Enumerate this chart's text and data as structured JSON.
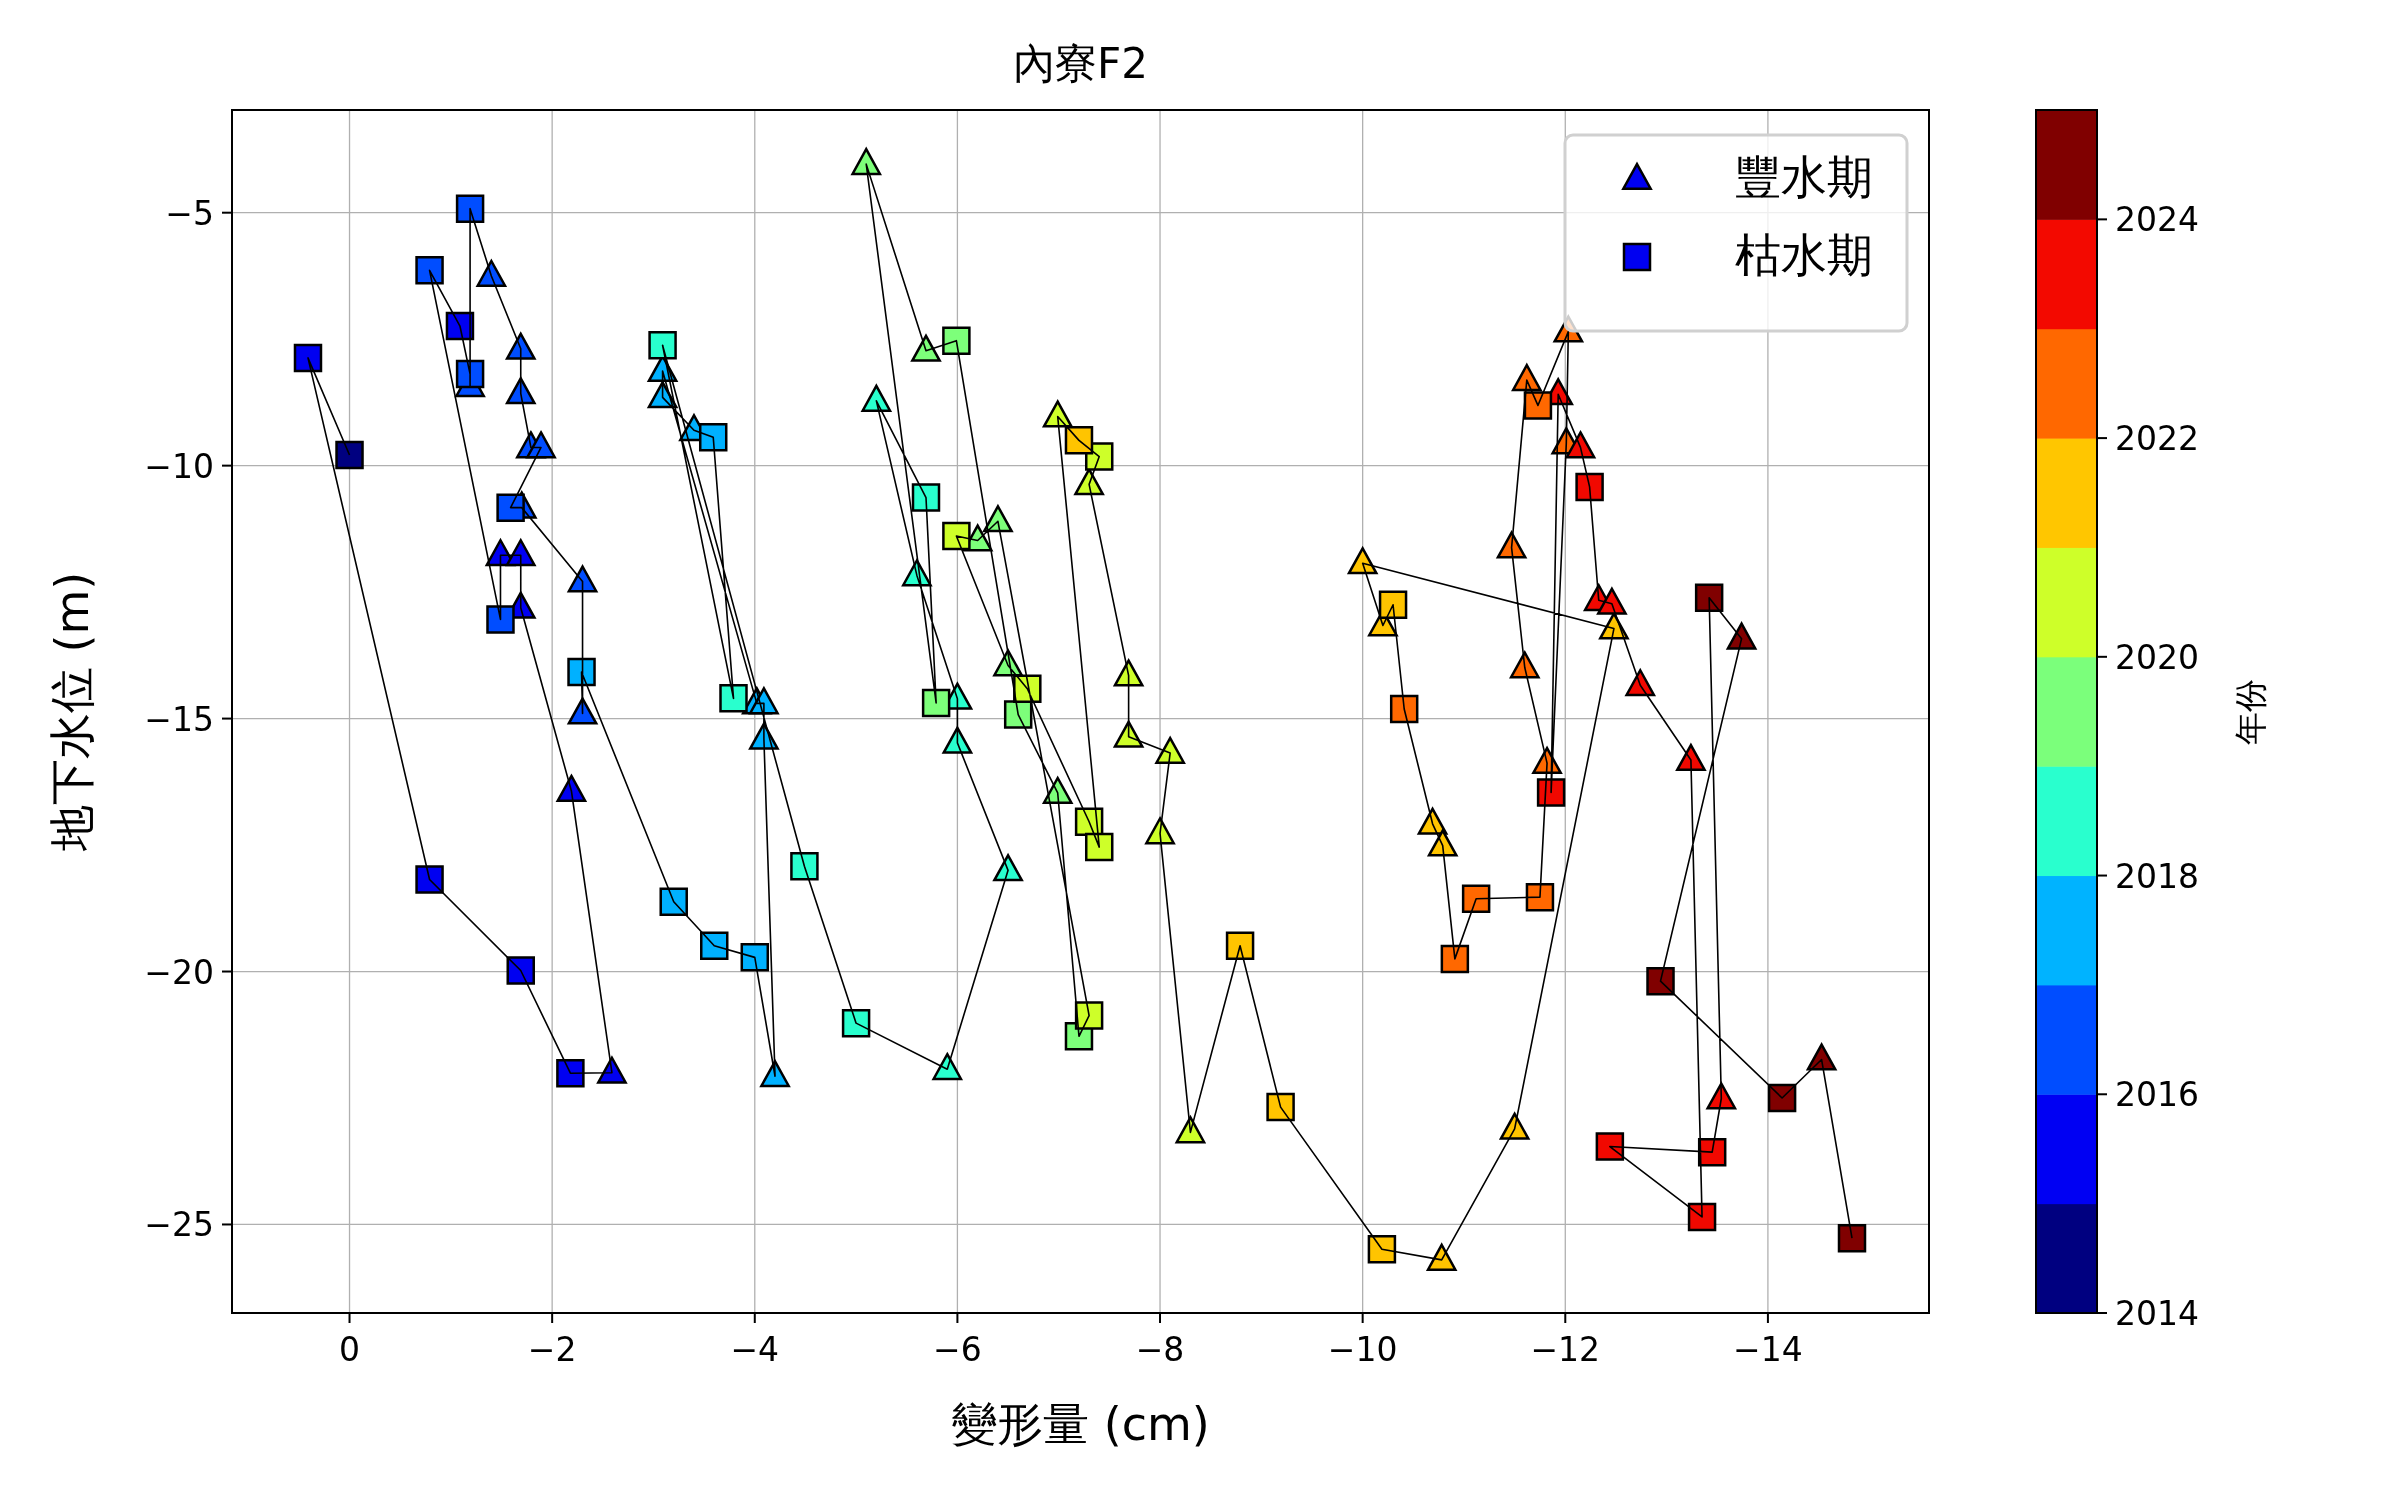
{
  "chart_data": {
    "type": "scatter",
    "title": "內寮F2",
    "xlabel": "變形量 (cm)",
    "ylabel": "地下水位 (m)",
    "clabel": "年份",
    "xlim": [
      1.16,
      -15.59
    ],
    "ylim": [
      -26.75,
      -2.97
    ],
    "xticks": [
      {
        "value": 0,
        "label": "0"
      },
      {
        "value": -2,
        "label": "−2"
      },
      {
        "value": -4,
        "label": "−4"
      },
      {
        "value": -6,
        "label": "−6"
      },
      {
        "value": -8,
        "label": "−8"
      },
      {
        "value": -10,
        "label": "−10"
      },
      {
        "value": -12,
        "label": "−12"
      },
      {
        "value": -14,
        "label": "−14"
      }
    ],
    "yticks": [
      {
        "value": -5,
        "label": "−5"
      },
      {
        "value": -10,
        "label": "−10"
      },
      {
        "value": -15,
        "label": "−15"
      },
      {
        "value": -20,
        "label": "−20"
      },
      {
        "value": -25,
        "label": "−25"
      }
    ],
    "clim": [
      2014,
      2025
    ],
    "cticks": [
      2014,
      2016,
      2018,
      2020,
      2022,
      2024
    ],
    "grid": true,
    "legend": "top right",
    "series": [
      {
        "name": "豐水期",
        "marker": "triangle",
        "colors": [
          "#0000f1",
          "#0000f1",
          "#0000f1",
          "#0000f1",
          "#0000f1",
          "#004dff",
          "#004dff",
          "#004dff",
          "#004dff",
          "#004dff",
          "#004dff",
          "#004dff",
          "#004dff",
          "#004dff",
          "#00b1ff",
          "#00b1ff",
          "#00b1ff",
          "#00b1ff",
          "#00b1ff",
          "#00b1ff",
          "#00b1ff",
          "#29ffce",
          "#29ffce",
          "#29ffce",
          "#29ffce",
          "#29ffce",
          "#29ffce",
          "#7dff7a",
          "#7dff7a",
          "#7dff7a",
          "#7dff7a",
          "#7dff7a",
          "#7dff7a",
          "#ceff29",
          "#ceff29",
          "#ceff29",
          "#ceff29",
          "#ceff29",
          "#ceff29",
          "#ceff29",
          "#ffc400",
          "#ffc400",
          "#ffc400",
          "#ffc400",
          "#ffc400",
          "#ffc400",
          "#ffc400",
          "#ff6800",
          "#ff6800",
          "#ff6800",
          "#ff6800",
          "#f10800",
          "#ff6800",
          "#ff6800",
          "#f10800",
          "#f10800",
          "#f10800",
          "#f10800",
          "#f10800",
          "#800000",
          "#800000",
          "#f10800"
        ],
        "x": [
          -2.59,
          -2.19,
          -1.69,
          -1.49,
          -1.69,
          -1.19,
          -1.4,
          -1.69,
          -1.69,
          -1.79,
          -1.89,
          -1.7,
          -2.3,
          -2.3,
          -4.2,
          -4.09,
          -4.02,
          -4.09,
          -3.09,
          -3.09,
          -3.4,
          -5.9,
          -6.5,
          -6.0,
          -6.0,
          -5.6,
          -5.2,
          -5.1,
          -5.69,
          -6.2,
          -6.4,
          -6.5,
          -6.99,
          -6.99,
          -7.3,
          -7.69,
          -7.69,
          -8.1,
          -8.0,
          -8.3,
          -10.78,
          -11.5,
          -12.48,
          -10.0,
          -10.2,
          -10.69,
          -10.79,
          -11.82,
          -11.6,
          -11.47,
          -11.62,
          -11.93,
          -12.03,
          -12.01,
          -12.15,
          -12.33,
          -12.46,
          -12.74,
          -13.24,
          -13.74,
          -14.53,
          -13.54
        ],
        "values": [
          -22.0,
          -16.43,
          -12.81,
          -11.77,
          -11.77,
          -8.43,
          -6.25,
          -7.69,
          -8.57,
          -9.64,
          -9.64,
          -10.83,
          -12.29,
          -14.9,
          -22.07,
          -15.4,
          -14.7,
          -14.7,
          -8.13,
          -8.65,
          -9.3,
          -21.93,
          -18.0,
          -15.48,
          -14.61,
          -12.17,
          -8.72,
          -4.04,
          -7.73,
          -11.48,
          -11.1,
          -13.95,
          -16.47,
          -9.03,
          -10.37,
          -14.15,
          -15.36,
          -15.68,
          -17.27,
          -23.18,
          -25.7,
          -23.11,
          -13.22,
          -11.93,
          -13.16,
          -17.08,
          -17.51,
          -15.88,
          -13.99,
          -11.62,
          -8.31,
          -8.59,
          -7.35,
          -9.56,
          -9.64,
          -12.66,
          -12.73,
          -14.34,
          -15.82,
          -13.42,
          -21.74,
          -22.51
        ],
        "cvalues": [
          2015,
          2015,
          2015,
          2015,
          2015,
          2016,
          2016,
          2016,
          2016,
          2016,
          2016,
          2016,
          2016,
          2016,
          2017,
          2017,
          2017,
          2017,
          2017,
          2017,
          2017,
          2018,
          2018,
          2018,
          2018,
          2018,
          2018,
          2019,
          2019,
          2019,
          2019,
          2019,
          2019,
          2020,
          2020,
          2020,
          2020,
          2020,
          2020,
          2020,
          2021,
          2021,
          2021,
          2021,
          2021,
          2021,
          2021,
          2022,
          2022,
          2022,
          2022,
          2023,
          2022,
          2022,
          2023,
          2023,
          2023,
          2023,
          2023,
          2024,
          2024,
          2023
        ]
      },
      {
        "name": "枯水期",
        "marker": "square",
        "colors": [
          "#0000f1",
          "#000080",
          "#0000f1",
          "#0000f1",
          "#0000f1",
          "#004dff",
          "#004dff",
          "#004dff",
          "#0000f1",
          "#004dff",
          "#004dff",
          "#00b1ff",
          "#00b1ff",
          "#00b1ff",
          "#00b1ff",
          "#29ffce",
          "#29ffce",
          "#00b1ff",
          "#29ffce",
          "#29ffce",
          "#7dff7a",
          "#29ffce",
          "#7dff7a",
          "#ceff29",
          "#ceff29",
          "#7dff7a",
          "#7dff7a",
          "#ceff29",
          "#ceff29",
          "#ceff29",
          "#ffc400",
          "#ceff29",
          "#ffc400",
          "#ffc400",
          "#ffc400",
          "#ffc400",
          "#ff6800",
          "#ff6800",
          "#ff6800",
          "#ff6800",
          "#f10800",
          "#ff6800",
          "#f10800",
          "#800000",
          "#800000",
          "#800000",
          "#800000",
          "#f10800",
          "#f10800",
          "#f10800"
        ],
        "x": [
          0.41,
          0,
          -0.79,
          -1.69,
          -2.18,
          -1.49,
          -1.19,
          -0.79,
          -1.09,
          -1.19,
          -1.59,
          -2.29,
          -3.2,
          -3.6,
          -4.0,
          -3.79,
          -3.09,
          -3.59,
          -4.49,
          -5.0,
          -5.79,
          -5.69,
          -5.99,
          -5.99,
          -6.69,
          -6.6,
          -7.2,
          -7.3,
          -7.3,
          -7.4,
          -7.2,
          -7.4,
          -8.79,
          -9.19,
          -10.19,
          -10.3,
          -10.41,
          -10.91,
          -11.12,
          -11.75,
          -11.86,
          -11.73,
          -12.24,
          -13.42,
          -12.94,
          -14.14,
          -14.83,
          -13.45,
          -13.35,
          -12.44
        ],
        "values": [
          -7.87,
          -9.79,
          -18.18,
          -19.98,
          -22.01,
          -13.04,
          -4.92,
          -6.14,
          -7.24,
          -8.19,
          -10.83,
          -14.08,
          -18.62,
          -19.49,
          -19.72,
          -14.6,
          -7.62,
          -9.44,
          -17.92,
          -21.02,
          -14.69,
          -10.63,
          -7.53,
          -11.39,
          -14.41,
          -14.92,
          -21.28,
          -20.87,
          -17.04,
          -17.54,
          -9.5,
          -9.82,
          -19.49,
          -22.68,
          -25.49,
          -12.75,
          -14.81,
          -19.75,
          -18.56,
          -18.53,
          -16.46,
          -8.81,
          -10.42,
          -12.61,
          -20.19,
          -22.5,
          -25.27,
          -23.57,
          -24.85,
          -23.46
        ],
        "cvalues": [
          2015,
          2014,
          2015,
          2015,
          2015,
          2016,
          2016,
          2016,
          2015,
          2016,
          2016,
          2017,
          2017,
          2017,
          2017,
          2018,
          2018,
          2017,
          2018,
          2018,
          2019,
          2018,
          2019,
          2020,
          2020,
          2019,
          2019,
          2020,
          2020,
          2020,
          2021,
          2020,
          2021,
          2021,
          2021,
          2021,
          2022,
          2022,
          2022,
          2022,
          2023,
          2022,
          2023,
          2024,
          2024,
          2024,
          2024,
          2023,
          2023,
          2023
        ]
      },
      {
        "type": "line",
        "color": "#000000",
        "x": [
          0,
          0.41,
          -0.79,
          -1.69,
          -2.18,
          -2.59,
          -2.19,
          -1.69,
          -1.69,
          -1.49,
          -1.49,
          -0.79,
          -1.09,
          -1.19,
          -1.19,
          -1.19,
          -1.4,
          -1.69,
          -1.69,
          -1.79,
          -1.89,
          -1.59,
          -1.7,
          -2.3,
          -2.3,
          -2.29,
          -3.2,
          -3.6,
          -4.0,
          -4.2,
          -4.09,
          -4.09,
          -4.02,
          -3.09,
          -3.09,
          -3.4,
          -3.59,
          -3.79,
          -3.09,
          -4.49,
          -5.0,
          -5.9,
          -6.5,
          -6.0,
          -6.0,
          -5.6,
          -5.2,
          -5.69,
          -5.79,
          -5.1,
          -5.69,
          -5.99,
          -6.6,
          -6.99,
          -7.2,
          -7.3,
          -6.4,
          -6.2,
          -5.99,
          -6.5,
          -6.69,
          -7.3,
          -7.4,
          -6.99,
          -7.2,
          -7.4,
          -7.3,
          -7.69,
          -7.69,
          -8.1,
          -8.0,
          -8.3,
          -8.79,
          -9.19,
          -10.19,
          -10.78,
          -11.5,
          -12.48,
          -10.0,
          -10.2,
          -10.3,
          -10.41,
          -10.69,
          -10.79,
          -10.91,
          -11.12,
          -11.75,
          -11.82,
          -11.6,
          -11.47,
          -11.62,
          -11.73,
          -12.03,
          -12.01,
          -11.86,
          -11.93,
          -12.15,
          -12.24,
          -12.33,
          -12.46,
          -12.74,
          -13.24,
          -13.35,
          -12.44,
          -13.45,
          -13.54,
          -13.42,
          -13.74,
          -12.94,
          -14.14,
          -14.53,
          -14.83
        ],
        "values": [
          -9.79,
          -7.87,
          -18.18,
          -19.98,
          -22.01,
          -22.0,
          -16.43,
          -12.81,
          -11.77,
          -11.77,
          -13.04,
          -6.14,
          -7.24,
          -8.19,
          -8.43,
          -4.92,
          -6.25,
          -7.69,
          -8.57,
          -9.64,
          -9.64,
          -10.83,
          -10.83,
          -12.29,
          -14.9,
          -14.08,
          -18.62,
          -19.49,
          -19.72,
          -22.07,
          -15.4,
          -14.7,
          -14.7,
          -8.13,
          -8.65,
          -9.3,
          -9.44,
          -14.6,
          -7.62,
          -17.92,
          -21.02,
          -21.93,
          -18.0,
          -15.48,
          -14.61,
          -12.17,
          -8.72,
          -10.63,
          -14.69,
          -4.04,
          -7.73,
          -7.53,
          -14.92,
          -16.47,
          -21.28,
          -20.87,
          -11.1,
          -11.48,
          -11.39,
          -13.95,
          -14.41,
          -17.04,
          -17.54,
          -9.03,
          -9.5,
          -9.82,
          -10.37,
          -14.15,
          -15.36,
          -15.68,
          -17.27,
          -23.18,
          -19.49,
          -22.68,
          -25.49,
          -25.7,
          -23.11,
          -13.22,
          -11.93,
          -13.16,
          -12.75,
          -14.81,
          -17.08,
          -17.51,
          -19.75,
          -18.56,
          -18.53,
          -15.88,
          -13.99,
          -11.62,
          -8.31,
          -8.81,
          -7.35,
          -9.56,
          -16.46,
          -8.59,
          -9.64,
          -10.42,
          -12.66,
          -12.73,
          -14.34,
          -15.82,
          -24.85,
          -23.46,
          -23.57,
          -22.51,
          -12.61,
          -13.42,
          -20.19,
          -22.5,
          -21.74,
          -25.27
        ]
      }
    ]
  }
}
